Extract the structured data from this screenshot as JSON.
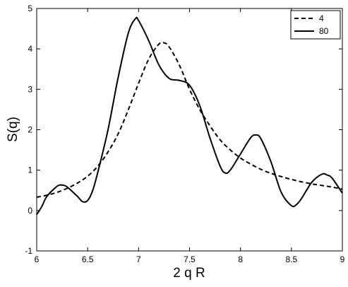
{
  "chart_data": {
    "type": "line",
    "x_label": "2 q R",
    "y_label": "S(q)",
    "xlim": [
      6,
      9
    ],
    "xticks": [
      6,
      6.5,
      7,
      7.5,
      8,
      8.5,
      9
    ],
    "ylim": [
      -1,
      5
    ],
    "yticks": [
      -1,
      0,
      1,
      2,
      3,
      4,
      5
    ],
    "grid": false,
    "legend": "upper right",
    "series": [
      {
        "name": "4",
        "color": "#000000",
        "dash": true,
        "x": [
          6.0,
          6.1,
          6.2,
          6.3,
          6.4,
          6.5,
          6.6,
          6.7,
          6.8,
          6.9,
          7.0,
          7.1,
          7.2,
          7.25,
          7.3,
          7.4,
          7.5,
          7.6,
          7.7,
          7.8,
          7.9,
          8.0,
          8.1,
          8.2,
          8.3,
          8.4,
          8.5,
          8.6,
          8.7,
          8.8,
          8.9,
          9.0
        ],
        "values": [
          0.33,
          0.38,
          0.45,
          0.55,
          0.68,
          0.85,
          1.1,
          1.45,
          1.9,
          2.5,
          3.15,
          3.75,
          4.12,
          4.15,
          4.05,
          3.6,
          3.0,
          2.5,
          2.1,
          1.75,
          1.5,
          1.3,
          1.15,
          1.02,
          0.92,
          0.84,
          0.77,
          0.71,
          0.66,
          0.62,
          0.58,
          0.53
        ]
      },
      {
        "name": "80",
        "color": "#000000",
        "dash": false,
        "x": [
          6.0,
          6.05,
          6.1,
          6.2,
          6.25,
          6.3,
          6.4,
          6.45,
          6.5,
          6.55,
          6.6,
          6.7,
          6.8,
          6.9,
          6.97,
          7.0,
          7.1,
          7.2,
          7.3,
          7.4,
          7.5,
          7.6,
          7.7,
          7.8,
          7.85,
          7.9,
          8.0,
          8.1,
          8.15,
          8.2,
          8.3,
          8.4,
          8.5,
          8.55,
          8.6,
          8.7,
          8.8,
          8.85,
          8.9,
          9.0
        ],
        "values": [
          -0.1,
          0.1,
          0.35,
          0.6,
          0.63,
          0.58,
          0.35,
          0.22,
          0.25,
          0.5,
          0.95,
          2.0,
          3.3,
          4.4,
          4.75,
          4.7,
          4.2,
          3.6,
          3.27,
          3.22,
          3.1,
          2.6,
          1.8,
          1.1,
          0.93,
          1.0,
          1.4,
          1.8,
          1.87,
          1.78,
          1.2,
          0.45,
          0.12,
          0.15,
          0.3,
          0.7,
          0.9,
          0.88,
          0.8,
          0.43
        ]
      }
    ]
  }
}
